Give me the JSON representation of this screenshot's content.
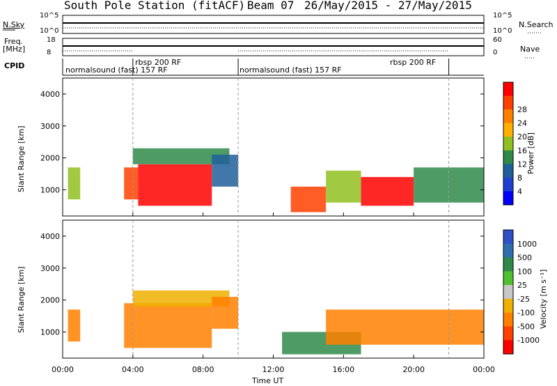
{
  "header": {
    "station": "South Pole Station (fitACF)",
    "beam": "Beam 07",
    "dates": "26/May/2015 - 27/May/2015"
  },
  "noise_panel": {
    "left_label": "N.Sky",
    "right_label": "N.Search",
    "tick_high": "10^5",
    "tick_low": "10^0",
    "tick_high_r": "10^5",
    "tick_low_r": "10^0"
  },
  "freq_panel": {
    "left_label_1": "Freq.",
    "left_label_2": "[MHz]",
    "left_tick_high": "18",
    "left_tick_low": "8",
    "right_label": "Nave",
    "right_tick_high": "60",
    "right_tick_low": "0"
  },
  "cpid_panel": {
    "label": "CPID",
    "segments": [
      "normalsound (fast) 157 RF",
      "rbsp 200 RF",
      "normalsound (fast) 157 RF",
      "rbsp 200 RF"
    ]
  },
  "colors": {
    "power": [
      "#0000ff",
      "#2040d0",
      "#20609a",
      "#2f8a4a",
      "#90c020",
      "#ffb000",
      "#ff8000",
      "#ff4000",
      "#ff0000"
    ],
    "velocity": [
      "#3050c8",
      "#2f6fb0",
      "#2f8a4a",
      "#50c030",
      "#c8c8c8",
      "#f0b000",
      "#ff8000",
      "#ff4000",
      "#ff0000"
    ]
  },
  "chart_data": [
    {
      "type": "heatmap",
      "title": "Power",
      "xlabel": "Time UT",
      "ylabel": "Slant Range [km]",
      "x_ticks": [
        "00:00",
        "04:00",
        "08:00",
        "12:00",
        "16:00",
        "20:00",
        "00:00"
      ],
      "y_ticks": [
        "1000",
        "2000",
        "3000",
        "4000"
      ],
      "xlim_hours": [
        0,
        24
      ],
      "ylim": [
        180,
        4500
      ],
      "colorbar_label": "Power [dB]",
      "colorbar_ticks": [
        "4",
        "8",
        "12",
        "16",
        "20",
        "24",
        "28"
      ],
      "regions": [
        {
          "t0": 0.3,
          "t1": 1.0,
          "r0": 700,
          "r1": 1700,
          "level": 4
        },
        {
          "t0": 3.5,
          "t1": 4.3,
          "r0": 700,
          "r1": 1700,
          "level": 7
        },
        {
          "t0": 4.3,
          "t1": 8.5,
          "r0": 500,
          "r1": 1800,
          "level": 8
        },
        {
          "t0": 4.0,
          "t1": 9.5,
          "r0": 1800,
          "r1": 2300,
          "level": 3
        },
        {
          "t0": 8.5,
          "t1": 10.0,
          "r0": 1100,
          "r1": 2100,
          "level": 2
        },
        {
          "t0": 13.0,
          "t1": 15.0,
          "r0": 300,
          "r1": 1100,
          "level": 7
        },
        {
          "t0": 15.0,
          "t1": 17.0,
          "r0": 600,
          "r1": 1600,
          "level": 4
        },
        {
          "t0": 17.0,
          "t1": 20.0,
          "r0": 500,
          "r1": 1400,
          "level": 8
        },
        {
          "t0": 20.0,
          "t1": 24.0,
          "r0": 600,
          "r1": 1700,
          "level": 3
        }
      ]
    },
    {
      "type": "heatmap",
      "title": "Velocity",
      "xlabel": "Time UT",
      "ylabel": "Slant Range [km]",
      "x_ticks": [
        "00:00",
        "04:00",
        "08:00",
        "12:00",
        "16:00",
        "20:00",
        "00:00"
      ],
      "y_ticks": [
        "1000",
        "2000",
        "3000",
        "4000"
      ],
      "xlim_hours": [
        0,
        24
      ],
      "ylim": [
        180,
        4500
      ],
      "colorbar_label": "Velocity [m s⁻¹]",
      "colorbar_ticks": [
        "1000",
        "500",
        "100",
        "25",
        "-25",
        "-100",
        "-500",
        "-1000"
      ],
      "regions": [
        {
          "t0": 0.3,
          "t1": 1.0,
          "r0": 700,
          "r1": 1700,
          "level": 6
        },
        {
          "t0": 3.5,
          "t1": 8.5,
          "r0": 500,
          "r1": 1900,
          "level": 6
        },
        {
          "t0": 4.0,
          "t1": 9.5,
          "r0": 1800,
          "r1": 2300,
          "level": 5
        },
        {
          "t0": 8.5,
          "t1": 10.0,
          "r0": 1100,
          "r1": 2100,
          "level": 6
        },
        {
          "t0": 12.5,
          "t1": 17.0,
          "r0": 300,
          "r1": 1000,
          "level": 2
        },
        {
          "t0": 15.0,
          "t1": 24.0,
          "r0": 600,
          "r1": 1700,
          "level": 6
        }
      ]
    }
  ]
}
